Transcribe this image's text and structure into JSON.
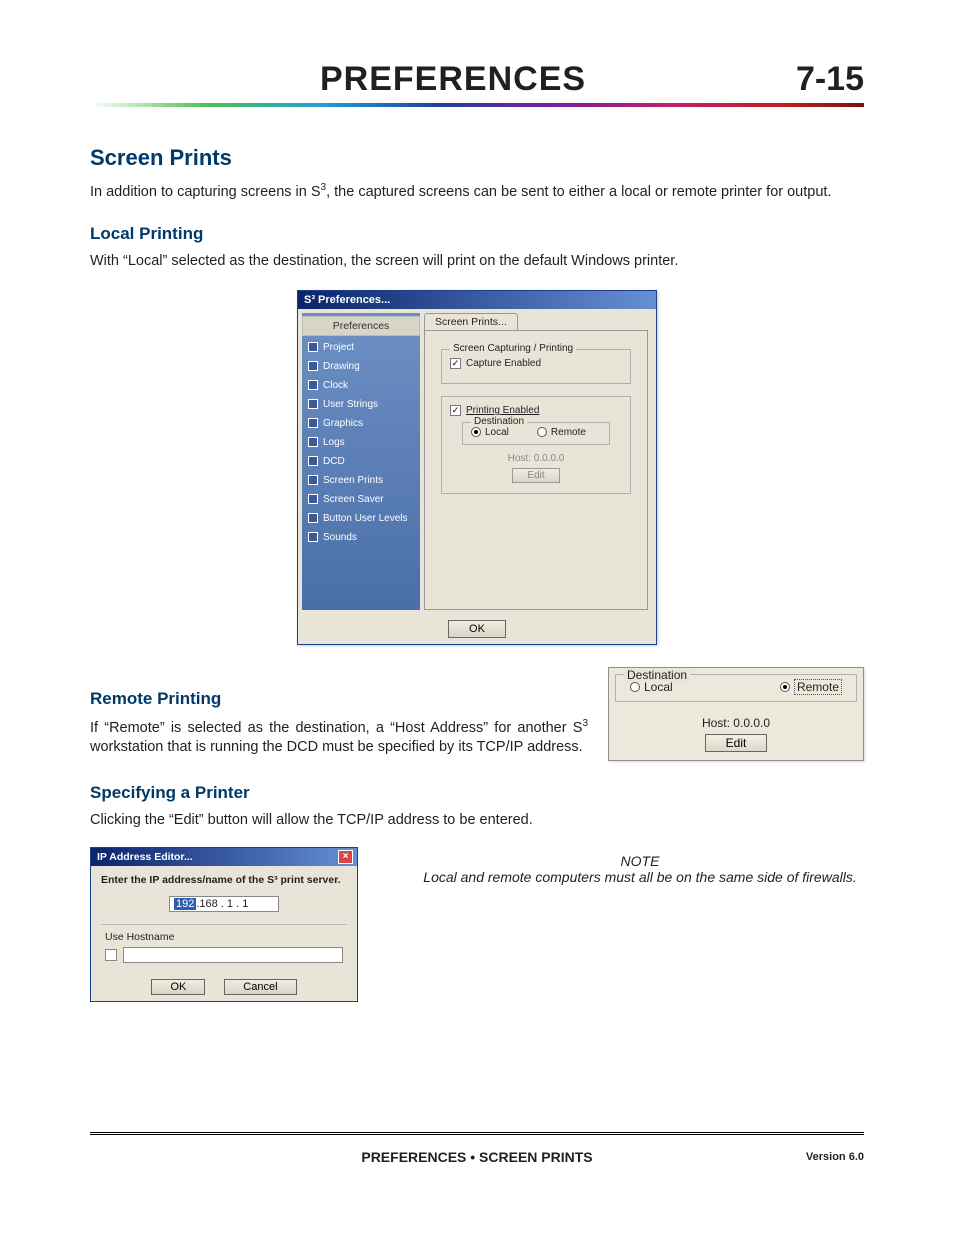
{
  "header": {
    "title": "PREFERENCES",
    "page": "7-15"
  },
  "sections": {
    "screenPrints": {
      "title": "Screen Prints",
      "intro_a": "In addition to capturing screens in S",
      "intro_sup": "3",
      "intro_b": ", the captured screens can be sent to either a local or remote printer for output."
    },
    "local": {
      "title": "Local Printing",
      "text": "With “Local” selected as the destination, the screen will print on the default Windows printer."
    },
    "remote": {
      "title": "Remote Printing",
      "text_a": "If “Remote” is selected as the destination, a “Host Address” for another S",
      "text_sup": "3",
      "text_b": " workstation that is running the DCD must be specified by its TCP/IP address."
    },
    "specify": {
      "title": "Specifying a Printer",
      "text": "Clicking the “Edit” button will allow the TCP/IP address to be entered."
    }
  },
  "prefWin": {
    "title": "S³ Preferences...",
    "sidebarHeader": "Preferences",
    "items": [
      "Project",
      "Drawing",
      "Clock",
      "User Strings",
      "Graphics",
      "Logs",
      "DCD",
      "Screen Prints",
      "Screen Saver",
      "Button User Levels",
      "Sounds"
    ],
    "tab": "Screen Prints...",
    "group1": "Screen Capturing / Printing",
    "captureLabel": "Capture Enabled",
    "printingLabel": "Printing Enabled",
    "destLegend": "Destination",
    "localLabel": "Local",
    "remoteLabel": "Remote",
    "hostLabel": "Host: 0.0.0.0",
    "editLabel": "Edit",
    "okLabel": "OK"
  },
  "remoteBox": {
    "destLegend": "Destination",
    "localLabel": "Local",
    "remoteLabel": "Remote",
    "hostLabel": "Host: 0.0.0.0",
    "editLabel": "Edit"
  },
  "ipWin": {
    "title": "IP Address Editor...",
    "prompt": "Enter the IP address/name of the S³ print server.",
    "seg1": "192",
    "rest": ".168 . 1  . 1",
    "useHostname": "Use Hostname",
    "ok": "OK",
    "cancel": "Cancel"
  },
  "note": {
    "title": "NOTE",
    "text": "Local and remote computers must all be on the same side of firewalls."
  },
  "footer": {
    "center": "PREFERENCES • SCREEN PRINTS",
    "version": "Version 6.0"
  },
  "colors": {
    "heading": "#003a6a",
    "titlebarA": "#0a246a",
    "titlebarB": "#668fd8",
    "panel": "#e8e4d8",
    "sidebarA": "#6d90c4",
    "sidebarB": "#4a6ea8"
  }
}
